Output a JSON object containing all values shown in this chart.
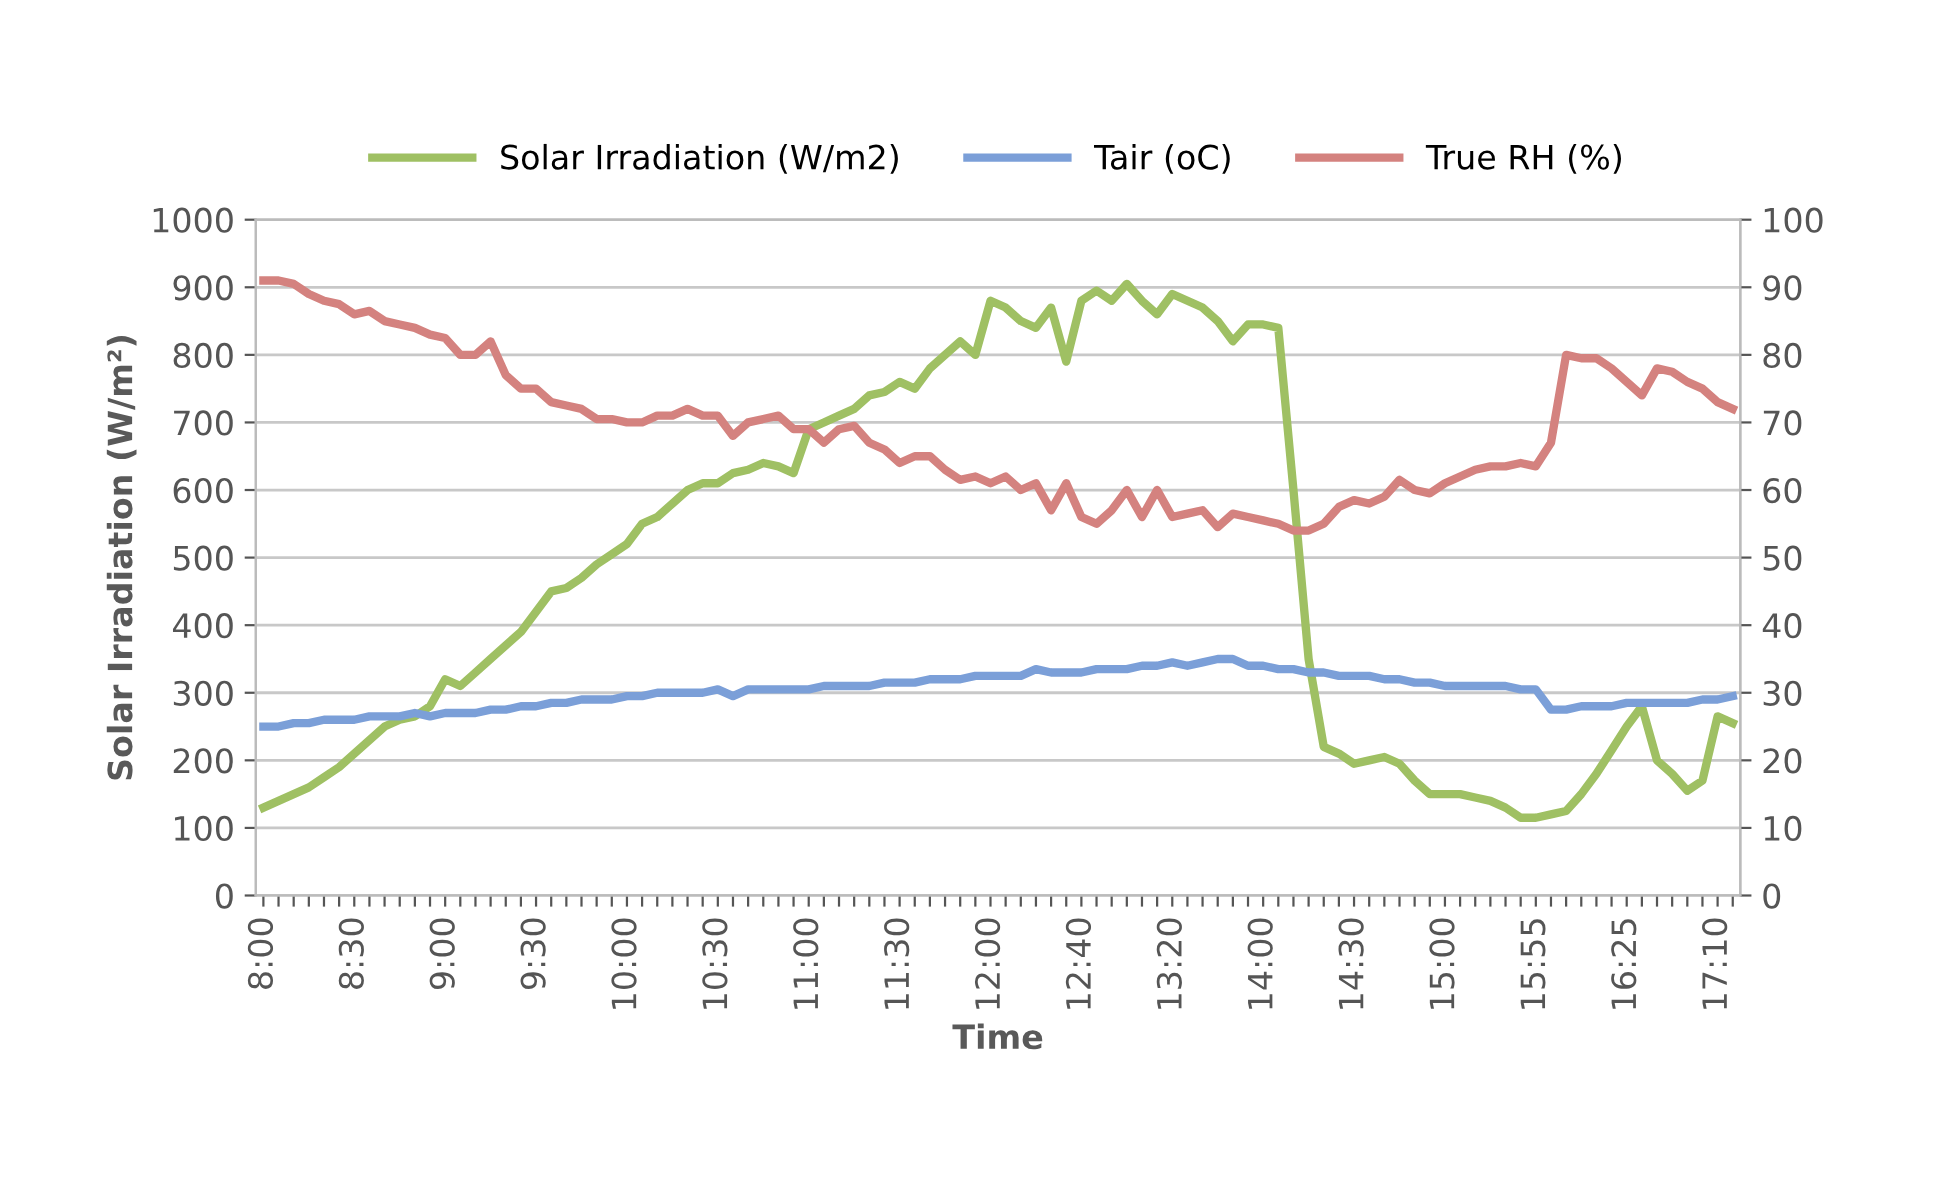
{
  "chart_data": {
    "type": "line",
    "xlabel": "Time",
    "ylabel": "Solar Irradiation (W/m²)",
    "categories": [
      "8:00",
      null,
      null,
      null,
      null,
      null,
      "8:30",
      null,
      null,
      null,
      null,
      null,
      "9:00",
      null,
      null,
      null,
      null,
      null,
      "9:30",
      null,
      null,
      null,
      null,
      null,
      "10:00",
      null,
      null,
      null,
      null,
      null,
      "10:30",
      null,
      null,
      null,
      null,
      null,
      "11:00",
      null,
      null,
      null,
      null,
      null,
      "11:30",
      null,
      null,
      null,
      null,
      null,
      "12:00",
      null,
      null,
      null,
      null,
      null,
      "12:40",
      null,
      null,
      null,
      null,
      null,
      "13:20",
      null,
      null,
      null,
      null,
      null,
      "14:00",
      null,
      null,
      null,
      null,
      null,
      "14:30",
      null,
      null,
      null,
      null,
      null,
      "15:00",
      null,
      null,
      null,
      null,
      null,
      "15:55",
      null,
      null,
      null,
      null,
      null,
      "16:25",
      null,
      null,
      null,
      null,
      null,
      "17:10",
      null
    ],
    "series": [
      {
        "name": "Solar Irradiation (W/m2)",
        "color": "#9fc063",
        "values": [
          130,
          140,
          150,
          160,
          175,
          190,
          210,
          230,
          250,
          260,
          265,
          280,
          320,
          310,
          330,
          350,
          370,
          390,
          420,
          450,
          455,
          470,
          490,
          505,
          520,
          550,
          560,
          580,
          600,
          610,
          610,
          625,
          630,
          640,
          635,
          625,
          690,
          700,
          710,
          720,
          740,
          745,
          760,
          750,
          780,
          800,
          820,
          800,
          880,
          870,
          850,
          840,
          870,
          790,
          880,
          895,
          880,
          905,
          880,
          860,
          890,
          880,
          870,
          850,
          820,
          845,
          845,
          840,
          600,
          350,
          220,
          210,
          195,
          200,
          205,
          195,
          170,
          150,
          150,
          150,
          145,
          140,
          130,
          115,
          115,
          120,
          125,
          150,
          180,
          215,
          250,
          280,
          200,
          180,
          155,
          170,
          265,
          255
        ]
      },
      {
        "name": "Tair (oC)",
        "color": "#7b9fd8",
        "axis": "y2",
        "values": [
          25,
          25,
          25.5,
          25.5,
          26,
          26,
          26,
          26.5,
          26.5,
          26.5,
          27,
          26.5,
          27,
          27,
          27,
          27.5,
          27.5,
          28,
          28,
          28.5,
          28.5,
          29,
          29,
          29,
          29.5,
          29.5,
          30,
          30,
          30,
          30,
          30.5,
          29.5,
          30.5,
          30.5,
          30.5,
          30.5,
          30.5,
          31,
          31,
          31,
          31,
          31.5,
          31.5,
          31.5,
          32,
          32,
          32,
          32.5,
          32.5,
          32.5,
          32.5,
          33.5,
          33,
          33,
          33,
          33.5,
          33.5,
          33.5,
          34,
          34,
          34.5,
          34,
          34.5,
          35,
          35,
          34,
          34,
          33.5,
          33.5,
          33,
          33,
          32.5,
          32.5,
          32.5,
          32,
          32,
          31.5,
          31.5,
          31,
          31,
          31,
          31,
          31,
          30.5,
          30.5,
          27.5,
          27.5,
          28,
          28,
          28,
          28.5,
          28.5,
          28.5,
          28.5,
          28.5,
          29,
          29,
          29.5
        ]
      },
      {
        "name": "True RH (%)",
        "color": "#d4827f",
        "axis": "y2",
        "values": [
          91,
          91,
          90.5,
          89,
          88,
          87.5,
          86,
          86.5,
          85,
          84.5,
          84,
          83,
          82.5,
          80,
          80,
          82,
          77,
          75,
          75,
          73,
          72.5,
          72,
          70.5,
          70.5,
          70,
          70,
          71,
          71,
          72,
          71,
          71,
          68,
          70,
          70.5,
          71,
          69,
          69,
          67,
          69,
          69.5,
          67,
          66,
          64,
          65,
          65,
          63,
          61.5,
          62,
          61,
          62,
          60,
          61,
          57,
          61,
          56,
          55,
          57,
          60,
          56,
          60,
          56,
          56.5,
          57,
          54.5,
          56.5,
          56,
          55.5,
          55,
          54,
          54,
          55,
          57.5,
          58.5,
          58,
          59,
          61.5,
          60,
          59.5,
          61,
          62,
          63,
          63.5,
          63.5,
          64,
          63.5,
          67,
          80,
          79.5,
          79.5,
          78,
          76,
          74,
          78,
          77.5,
          76,
          75,
          73,
          72
        ]
      }
    ],
    "ylim": [
      0,
      1000
    ],
    "yticks": [
      0,
      100,
      200,
      300,
      400,
      500,
      600,
      700,
      800,
      900,
      1000
    ],
    "y2lim": [
      0,
      100
    ],
    "y2ticks": [
      0,
      10,
      20,
      30,
      40,
      50,
      60,
      70,
      80,
      90,
      100
    ],
    "grid": "y",
    "legend": "top",
    "marker": "none",
    "line_style": "solid"
  }
}
